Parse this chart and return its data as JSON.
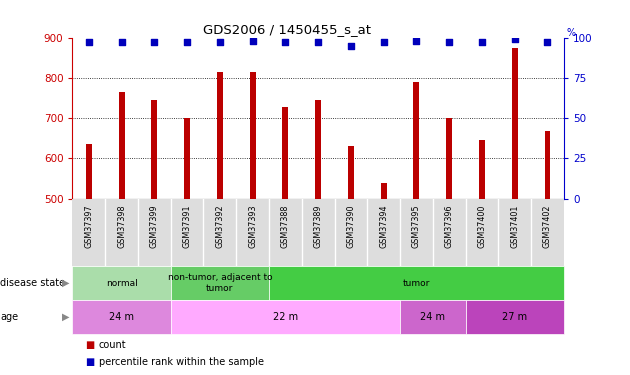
{
  "title": "GDS2006 / 1450455_s_at",
  "samples": [
    "GSM37397",
    "GSM37398",
    "GSM37399",
    "GSM37391",
    "GSM37392",
    "GSM37393",
    "GSM37388",
    "GSM37389",
    "GSM37390",
    "GSM37394",
    "GSM37395",
    "GSM37396",
    "GSM37400",
    "GSM37401",
    "GSM37402"
  ],
  "counts": [
    635,
    765,
    745,
    700,
    815,
    815,
    728,
    745,
    630,
    540,
    790,
    700,
    645,
    875,
    668
  ],
  "percentile": [
    97,
    97,
    97,
    97,
    97,
    98,
    97,
    97,
    95,
    97,
    98,
    97,
    97,
    99,
    97
  ],
  "ylim_left": [
    500,
    900
  ],
  "ylim_right": [
    0,
    100
  ],
  "yticks_left": [
    500,
    600,
    700,
    800,
    900
  ],
  "yticks_right": [
    0,
    25,
    50,
    75,
    100
  ],
  "bar_color": "#bb0000",
  "dot_color": "#0000bb",
  "grid_color": "#000000",
  "disease_state_groups": [
    {
      "label": "normal",
      "start": 0,
      "end": 3,
      "color": "#aaddaa"
    },
    {
      "label": "non-tumor, adjacent to\ntumor",
      "start": 3,
      "end": 6,
      "color": "#66cc66"
    },
    {
      "label": "tumor",
      "start": 6,
      "end": 15,
      "color": "#44cc44"
    }
  ],
  "age_groups": [
    {
      "label": "24 m",
      "start": 0,
      "end": 3,
      "color": "#dd88dd"
    },
    {
      "label": "22 m",
      "start": 3,
      "end": 10,
      "color": "#ffaaff"
    },
    {
      "label": "24 m",
      "start": 10,
      "end": 12,
      "color": "#cc66cc"
    },
    {
      "label": "27 m",
      "start": 12,
      "end": 15,
      "color": "#bb44bb"
    }
  ],
  "bg_color": "#ffffff",
  "tick_color_left": "#cc0000",
  "tick_color_right": "#0000cc",
  "xtick_bg": "#dddddd",
  "bar_width": 0.18,
  "dot_size": 18
}
